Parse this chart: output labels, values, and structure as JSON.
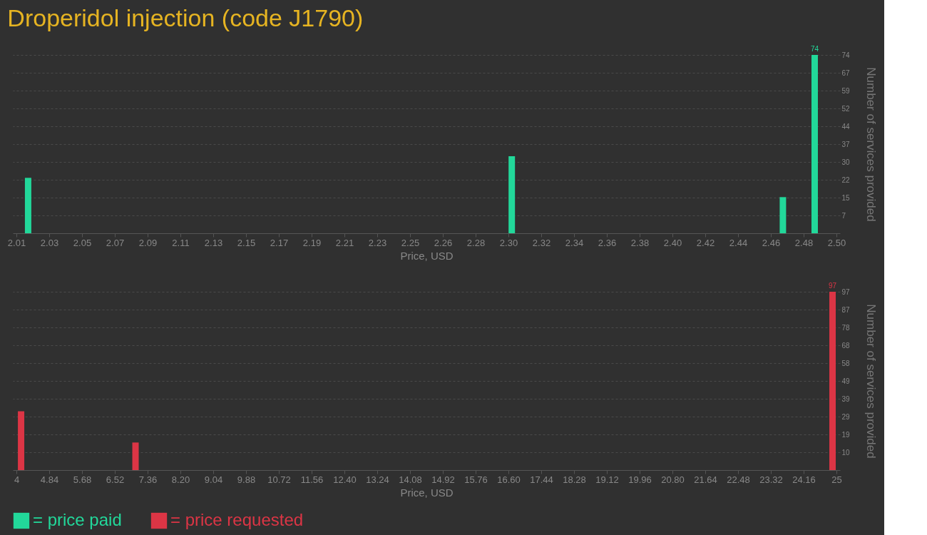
{
  "chart_data": [
    {
      "type": "bar",
      "title": "Droperidol injection (code J1790)",
      "xlabel": "Price, USD",
      "ylabel": "Number of services provided",
      "x": [
        2.017,
        2.306,
        2.468,
        2.487
      ],
      "series": [
        {
          "name": "= price paid",
          "color": "#22d89a",
          "values": [
            23,
            32,
            15,
            74
          ],
          "value_labels": [
            null,
            null,
            null,
            "74"
          ]
        }
      ],
      "xlim": [
        2.01,
        2.5
      ],
      "xticks": [
        2.01,
        {
          "value": 2.0296,
          "label": "2.03"
        },
        {
          "value": 2.0492,
          "label": "2.05"
        },
        {
          "value": 2.0688,
          "label": "2.07"
        },
        {
          "value": 2.0884,
          "label": "2.09"
        },
        {
          "value": 2.108,
          "label": "2.11"
        },
        {
          "value": 2.1276,
          "label": "2.13"
        },
        {
          "value": 2.1472,
          "label": "2.15"
        },
        {
          "value": 2.1668,
          "label": "2.17"
        },
        {
          "value": 2.1864,
          "label": "2.19"
        },
        {
          "value": 2.206,
          "label": "2.21"
        },
        {
          "value": 2.2256,
          "label": "2.23"
        },
        {
          "value": 2.2452,
          "label": "2.25"
        },
        {
          "value": 2.2648,
          "label": "2.26"
        },
        {
          "value": 2.2844,
          "label": "2.28"
        },
        {
          "value": 2.304,
          "label": "2.30"
        },
        {
          "value": 2.3236,
          "label": "2.32"
        },
        {
          "value": 2.3432,
          "label": "2.34"
        },
        {
          "value": 2.3628,
          "label": "2.36"
        },
        {
          "value": 2.3824,
          "label": "2.38"
        },
        {
          "value": 2.402,
          "label": "2.40"
        },
        {
          "value": 2.4216,
          "label": "2.42"
        },
        {
          "value": 2.4412,
          "label": "2.44"
        },
        {
          "value": 2.4608,
          "label": "2.46"
        },
        {
          "value": 2.4804,
          "label": "2.48"
        },
        {
          "value": 2.5,
          "label": "2.50"
        }
      ],
      "ylim": [
        0,
        74
      ],
      "yticks": [
        {
          "value": 7.4,
          "label": "7"
        },
        {
          "value": 14.8,
          "label": "15"
        },
        {
          "value": 22.2,
          "label": "22"
        },
        {
          "value": 29.6,
          "label": "30"
        },
        37,
        {
          "value": 44.4,
          "label": "44"
        },
        {
          "value": 51.8,
          "label": "52"
        },
        {
          "value": 59.2,
          "label": "59"
        },
        {
          "value": 66.6,
          "label": "67"
        },
        74
      ],
      "grid": "y",
      "legend": "bottom left"
    },
    {
      "type": "bar",
      "xlabel": "Price, USD",
      "ylabel": "Number of services provided",
      "x": [
        4.12,
        7.05,
        24.9
      ],
      "series": [
        {
          "name": "= price requested",
          "color": "#dc3545",
          "values": [
            32,
            15,
            97
          ],
          "value_labels": [
            null,
            null,
            "97"
          ]
        }
      ],
      "xlim": [
        4,
        25
      ],
      "xticks": [
        4,
        4.84,
        5.68,
        6.52,
        7.36,
        {
          "value": 8.2,
          "label": "8.20"
        },
        9.04,
        9.88,
        10.72,
        11.56,
        {
          "value": 12.4,
          "label": "12.40"
        },
        13.24,
        14.08,
        14.92,
        15.76,
        {
          "value": 16.6,
          "label": "16.60"
        },
        17.44,
        18.28,
        19.12,
        19.96,
        {
          "value": 20.8,
          "label": "20.80"
        },
        21.64,
        22.48,
        23.32,
        24.16,
        25
      ],
      "ylim": [
        0,
        97
      ],
      "yticks": [
        {
          "value": 9.7,
          "label": "10"
        },
        {
          "value": 19.4,
          "label": "19"
        },
        {
          "value": 29.1,
          "label": "29"
        },
        {
          "value": 38.8,
          "label": "39"
        },
        {
          "value": 48.5,
          "label": "49"
        },
        {
          "value": 58.2,
          "label": "58"
        },
        {
          "value": 67.9,
          "label": "68"
        },
        {
          "value": 77.6,
          "label": "78"
        },
        {
          "value": 87.3,
          "label": "87"
        },
        97
      ],
      "grid": "y",
      "legend": "bottom left"
    }
  ]
}
